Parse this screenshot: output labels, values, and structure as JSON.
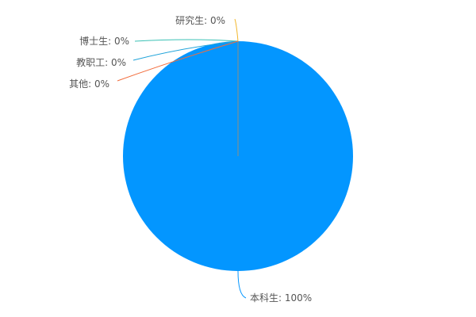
{
  "chart_data": {
    "type": "pie",
    "categories": [
      "本科生",
      "研究生",
      "博士生",
      "教职工",
      "其他"
    ],
    "values": [
      100,
      0,
      0,
      0,
      0
    ],
    "labels": [
      "本科生: 100%",
      "研究生: 0%",
      "博士生: 0%",
      "教职工: 0%",
      "其他: 0%"
    ],
    "colors": [
      "#0396ff",
      "#f2b62a",
      "#3bc1b5",
      "#1fa3d9",
      "#f26d3d"
    ],
    "title": "",
    "legend": "none"
  }
}
